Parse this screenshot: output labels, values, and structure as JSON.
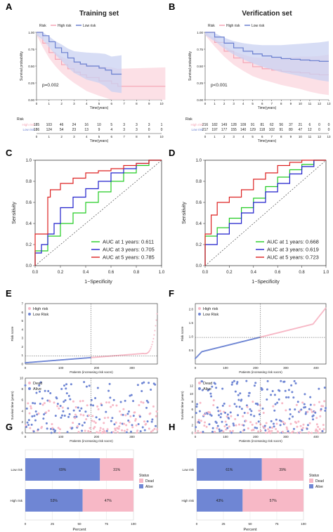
{
  "colors": {
    "high": "#f4a3b4",
    "high_band": "#fbd6de",
    "low": "#6a7fcf",
    "low_band": "#c9d2f1",
    "green": "#22cc22",
    "blue": "#1f1fcc",
    "red": "#dd2222",
    "dead": "#f7b8c6",
    "alive": "#6f86d4"
  },
  "chart_data": [
    {
      "id": "A",
      "panel_label": "A",
      "type": "line",
      "title": "Training set",
      "xlabel": "Time(years)",
      "ylabel": "Survival probability",
      "xlim": [
        0,
        10
      ],
      "ylim": [
        0,
        1
      ],
      "xticks": [
        "0",
        "1",
        "2",
        "3",
        "4",
        "5",
        "6",
        "7",
        "8",
        "9",
        "10"
      ],
      "yticks": [
        "0.00",
        "0.25",
        "0.50",
        "0.75",
        "1.00"
      ],
      "legend": {
        "title": "Risk",
        "entries": [
          "High risk",
          "Low risk"
        ]
      },
      "pvalue": "p=0.002",
      "series": [
        {
          "name": "High risk",
          "x": [
            0,
            0.5,
            1,
            1.5,
            2,
            2.5,
            3,
            3.5,
            4,
            5,
            6,
            6.5,
            10.3
          ],
          "values": [
            1,
            0.84,
            0.7,
            0.6,
            0.52,
            0.46,
            0.41,
            0.37,
            0.33,
            0.28,
            0.24,
            0.2,
            0.2
          ]
        },
        {
          "name": "Low risk",
          "x": [
            0,
            0.5,
            1,
            1.5,
            2,
            2.5,
            3,
            3.5,
            4,
            5,
            5.5,
            6,
            6.8
          ],
          "values": [
            1,
            0.95,
            0.86,
            0.77,
            0.7,
            0.62,
            0.56,
            0.53,
            0.5,
            0.47,
            0.44,
            0.38,
            0.38
          ]
        }
      ],
      "risk_table": {
        "title": "Risk",
        "xlabel": "Time(years)",
        "rows": [
          {
            "name": "High risk",
            "counts": [
              "185",
              "103",
              "46",
              "24",
              "16",
              "10",
              "5",
              "3",
              "3",
              "3",
              "1"
            ]
          },
          {
            "name": "Low risk",
            "counts": [
              "186",
              "124",
              "54",
              "23",
              "13",
              "9",
              "4",
              "3",
              "3",
              "0",
              "0"
            ]
          }
        ]
      }
    },
    {
      "id": "B",
      "panel_label": "B",
      "type": "line",
      "title": "Verification set",
      "xlabel": "Time(years)",
      "ylabel": "Survival probability",
      "xlim": [
        0,
        13
      ],
      "ylim": [
        0,
        1
      ],
      "xticks": [
        "0",
        "1",
        "2",
        "3",
        "4",
        "5",
        "6",
        "7",
        "8",
        "9",
        "10",
        "11",
        "12",
        "13"
      ],
      "yticks": [
        "0.00",
        "0.25",
        "0.50",
        "0.75",
        "1.00"
      ],
      "legend": {
        "title": "Risk",
        "entries": [
          "High risk",
          "Low risk"
        ]
      },
      "pvalue": "p<0.001",
      "series": [
        {
          "name": "High risk",
          "x": [
            0,
            1,
            2,
            3,
            4,
            5,
            6,
            7,
            8,
            9,
            10,
            11,
            12,
            13
          ],
          "values": [
            1,
            0.85,
            0.72,
            0.62,
            0.55,
            0.49,
            0.46,
            0.44,
            0.42,
            0.41,
            0.4,
            0.38,
            0.37,
            0.37
          ]
        },
        {
          "name": "Low risk",
          "x": [
            0,
            1,
            2,
            3,
            4,
            5,
            6,
            7,
            8,
            9,
            10,
            11,
            12,
            13
          ],
          "values": [
            1,
            0.93,
            0.84,
            0.77,
            0.72,
            0.68,
            0.65,
            0.63,
            0.61,
            0.6,
            0.59,
            0.58,
            0.57,
            0.57
          ]
        }
      ],
      "risk_table": {
        "title": "Risk",
        "xlabel": "Time(years)",
        "rows": [
          {
            "name": "High risk",
            "counts": [
              "216",
              "182",
              "149",
              "128",
              "109",
              "91",
              "81",
              "62",
              "56",
              "37",
              "21",
              "6",
              "0",
              "0"
            ]
          },
          {
            "name": "Low risk",
            "counts": [
              "217",
              "197",
              "177",
              "155",
              "140",
              "129",
              "118",
              "102",
              "91",
              "80",
              "47",
              "12",
              "0",
              "0"
            ]
          }
        ]
      }
    },
    {
      "id": "C",
      "panel_label": "C",
      "type": "line",
      "xlabel": "1−Specificity",
      "ylabel": "Sensitivity",
      "xlim": [
        0,
        1
      ],
      "ylim": [
        0,
        1
      ],
      "xticks": [
        "0.0",
        "0.2",
        "0.4",
        "0.6",
        "0.8",
        "1.0"
      ],
      "yticks": [
        "0.0",
        "0.2",
        "0.4",
        "0.6",
        "0.8",
        "1.0"
      ],
      "series": [
        {
          "name": "AUC at 1 years: 0.611",
          "x": [
            0,
            0.1,
            0.2,
            0.3,
            0.4,
            0.5,
            0.6,
            0.7,
            0.8,
            0.9,
            1
          ],
          "values": [
            0,
            0.14,
            0.28,
            0.4,
            0.5,
            0.6,
            0.7,
            0.8,
            0.88,
            0.95,
            1
          ]
        },
        {
          "name": "AUC at 3 years: 0.705",
          "x": [
            0,
            0.05,
            0.1,
            0.15,
            0.2,
            0.3,
            0.4,
            0.5,
            0.6,
            0.7,
            0.8,
            0.9,
            1
          ],
          "values": [
            0,
            0.12,
            0.2,
            0.3,
            0.4,
            0.55,
            0.65,
            0.73,
            0.8,
            0.88,
            0.92,
            0.97,
            1
          ]
        },
        {
          "name": "AUC at 5 years: 0.785",
          "x": [
            0,
            0.02,
            0.1,
            0.12,
            0.2,
            0.3,
            0.4,
            0.5,
            0.6,
            0.7,
            0.8,
            0.9,
            1
          ],
          "values": [
            0,
            0.3,
            0.3,
            0.65,
            0.72,
            0.78,
            0.83,
            0.88,
            0.9,
            0.92,
            0.95,
            0.97,
            1
          ]
        }
      ]
    },
    {
      "id": "D",
      "panel_label": "D",
      "type": "line",
      "xlabel": "1−Specificity",
      "ylabel": "Sensitivity",
      "xlim": [
        0,
        1
      ],
      "ylim": [
        0,
        1
      ],
      "xticks": [
        "0.0",
        "0.2",
        "0.4",
        "0.6",
        "0.8",
        "1.0"
      ],
      "yticks": [
        "0.0",
        "0.2",
        "0.4",
        "0.6",
        "0.8",
        "1.0"
      ],
      "series": [
        {
          "name": "AUC at 1 years: 0.668",
          "x": [
            0,
            0.1,
            0.2,
            0.3,
            0.4,
            0.5,
            0.6,
            0.7,
            0.8,
            0.9,
            1
          ],
          "values": [
            0,
            0.28,
            0.36,
            0.45,
            0.55,
            0.64,
            0.75,
            0.84,
            0.91,
            0.96,
            1
          ]
        },
        {
          "name": "AUC at 3 years: 0.619",
          "x": [
            0,
            0.1,
            0.2,
            0.3,
            0.4,
            0.5,
            0.6,
            0.7,
            0.8,
            0.9,
            1
          ],
          "values": [
            0,
            0.2,
            0.3,
            0.4,
            0.5,
            0.6,
            0.7,
            0.78,
            0.87,
            0.94,
            1
          ]
        },
        {
          "name": "AUC at 5 years: 0.723",
          "x": [
            0,
            0.05,
            0.1,
            0.2,
            0.3,
            0.4,
            0.5,
            0.6,
            0.7,
            0.8,
            0.9,
            1
          ],
          "values": [
            0,
            0.3,
            0.48,
            0.6,
            0.65,
            0.72,
            0.82,
            0.88,
            0.95,
            0.98,
            1,
            1
          ]
        }
      ]
    },
    {
      "id": "E1",
      "panel_label": "E",
      "type": "scatter",
      "xlabel": "Patients (increasing risk socre)",
      "ylabel": "Risk score",
      "xlim": [
        0,
        371
      ],
      "ylim": [
        0,
        7
      ],
      "xticks": [
        "0",
        "100",
        "200",
        "300"
      ],
      "yticks": [
        "0",
        "1",
        "2",
        "3",
        "4",
        "5",
        "6",
        "7"
      ],
      "legend": {
        "entries": [
          "High risk",
          "Low Risk"
        ]
      },
      "cutoff": {
        "x": 185,
        "y": 0.95
      },
      "n": 371
    },
    {
      "id": "F1",
      "panel_label": "F",
      "type": "scatter",
      "xlabel": "Patients (increasing risk socre)",
      "ylabel": "Risk score",
      "xlim": [
        0,
        433
      ],
      "ylim": [
        0,
        2.2
      ],
      "xticks": [
        "0",
        "100",
        "200",
        "300",
        "400"
      ],
      "yticks": [
        "0.5",
        "1.0",
        "1.5",
        "2.0"
      ],
      "legend": {
        "entries": [
          "High risk",
          "Low Risk"
        ]
      },
      "cutoff": {
        "x": 216,
        "y": 0.97
      },
      "n": 433
    },
    {
      "id": "E2",
      "type": "scatter",
      "xlabel": "Patients (increasing risk socre)",
      "ylabel": "Survival time (years)",
      "xlim": [
        0,
        371
      ],
      "ylim": [
        0,
        10
      ],
      "xticks": [
        "0",
        "100",
        "200",
        "300"
      ],
      "yticks": [
        "0",
        "2",
        "4",
        "6",
        "8",
        "10"
      ],
      "legend": {
        "entries": [
          "Dead",
          "Alive"
        ]
      },
      "cutoff": {
        "x": 185
      },
      "n": 371
    },
    {
      "id": "F2",
      "type": "scatter",
      "xlabel": "Patients (increasing risk socre)",
      "ylabel": "Survival time (years)",
      "xlim": [
        0,
        433
      ],
      "ylim": [
        0,
        14
      ],
      "xticks": [
        "0",
        "100",
        "200",
        "300",
        "400"
      ],
      "yticks": [
        "0",
        "2",
        "4",
        "6",
        "8",
        "10",
        "12"
      ],
      "legend": {
        "entries": [
          "Dead",
          "Alive"
        ]
      },
      "cutoff": {
        "x": 216
      },
      "n": 433
    },
    {
      "id": "G",
      "panel_label": "G",
      "type": "bar",
      "xlabel": "Percent",
      "categories": [
        "Low risk",
        "High risk"
      ],
      "xticks": [
        "0",
        "25",
        "50",
        "75",
        "100"
      ],
      "series": [
        {
          "name": "Alive",
          "values": [
            69,
            53
          ],
          "labels": [
            "69%",
            "53%"
          ]
        },
        {
          "name": "Dead",
          "values": [
            31,
            47
          ],
          "labels": [
            "31%",
            "47%"
          ]
        }
      ],
      "legend": {
        "title": "Status",
        "entries": [
          "Dead",
          "Alive"
        ]
      }
    },
    {
      "id": "H",
      "panel_label": "H",
      "type": "bar",
      "xlabel": "Percent",
      "categories": [
        "Low risk",
        "High risk"
      ],
      "xticks": [
        "0",
        "25",
        "50",
        "75",
        "100"
      ],
      "series": [
        {
          "name": "Alive",
          "values": [
            61,
            43
          ],
          "labels": [
            "61%",
            "43%"
          ]
        },
        {
          "name": "Dead",
          "values": [
            39,
            57
          ],
          "labels": [
            "39%",
            "57%"
          ]
        }
      ],
      "legend": {
        "title": "Status",
        "entries": [
          "Dead",
          "Alive"
        ]
      }
    }
  ]
}
